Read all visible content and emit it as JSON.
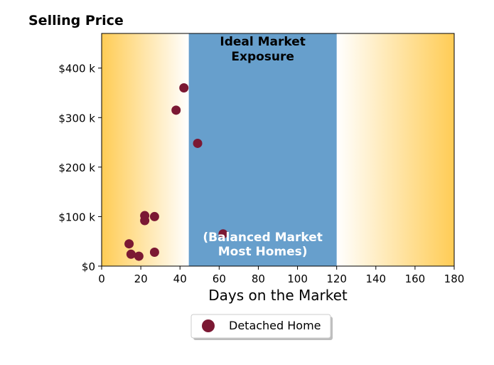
{
  "chart_data": {
    "type": "scatter",
    "title": "Selling Price",
    "xlabel": "Days on the Market",
    "ylabel": "",
    "xlim": [
      0,
      180
    ],
    "ylim": [
      0,
      470000
    ],
    "x_ticks": [
      0,
      20,
      40,
      60,
      80,
      100,
      120,
      140,
      160,
      180
    ],
    "x_tick_labels": [
      "0",
      "20",
      "40",
      "60",
      "80",
      "100",
      "120",
      "140",
      "160",
      "180"
    ],
    "y_ticks": [
      0,
      100000,
      200000,
      300000,
      400000
    ],
    "y_tick_labels": [
      "$0",
      "$100 k",
      "$200 k",
      "$300 k",
      "$400 k"
    ],
    "grid": false,
    "legend_position": "below",
    "series": [
      {
        "name": "Detached Home",
        "color": "#7b1833",
        "points": [
          {
            "x": 14,
            "y": 45000
          },
          {
            "x": 15,
            "y": 24000
          },
          {
            "x": 19,
            "y": 20000
          },
          {
            "x": 22,
            "y": 102000
          },
          {
            "x": 22,
            "y": 92000
          },
          {
            "x": 27,
            "y": 100000
          },
          {
            "x": 27,
            "y": 28000
          },
          {
            "x": 38,
            "y": 315000
          },
          {
            "x": 42,
            "y": 360000
          },
          {
            "x": 49,
            "y": 248000
          },
          {
            "x": 62,
            "y": 65000
          }
        ]
      }
    ],
    "zone": {
      "x_start": 44.5,
      "x_end": 120,
      "color": "#679fcc",
      "title_lines": [
        "Ideal Market",
        "Exposure"
      ],
      "subtitle_lines": [
        "(Balanced Market",
        "Most Homes)"
      ]
    },
    "background_gradient": {
      "edge_color": "#ffcc55",
      "center_color": "#ffffff"
    }
  }
}
